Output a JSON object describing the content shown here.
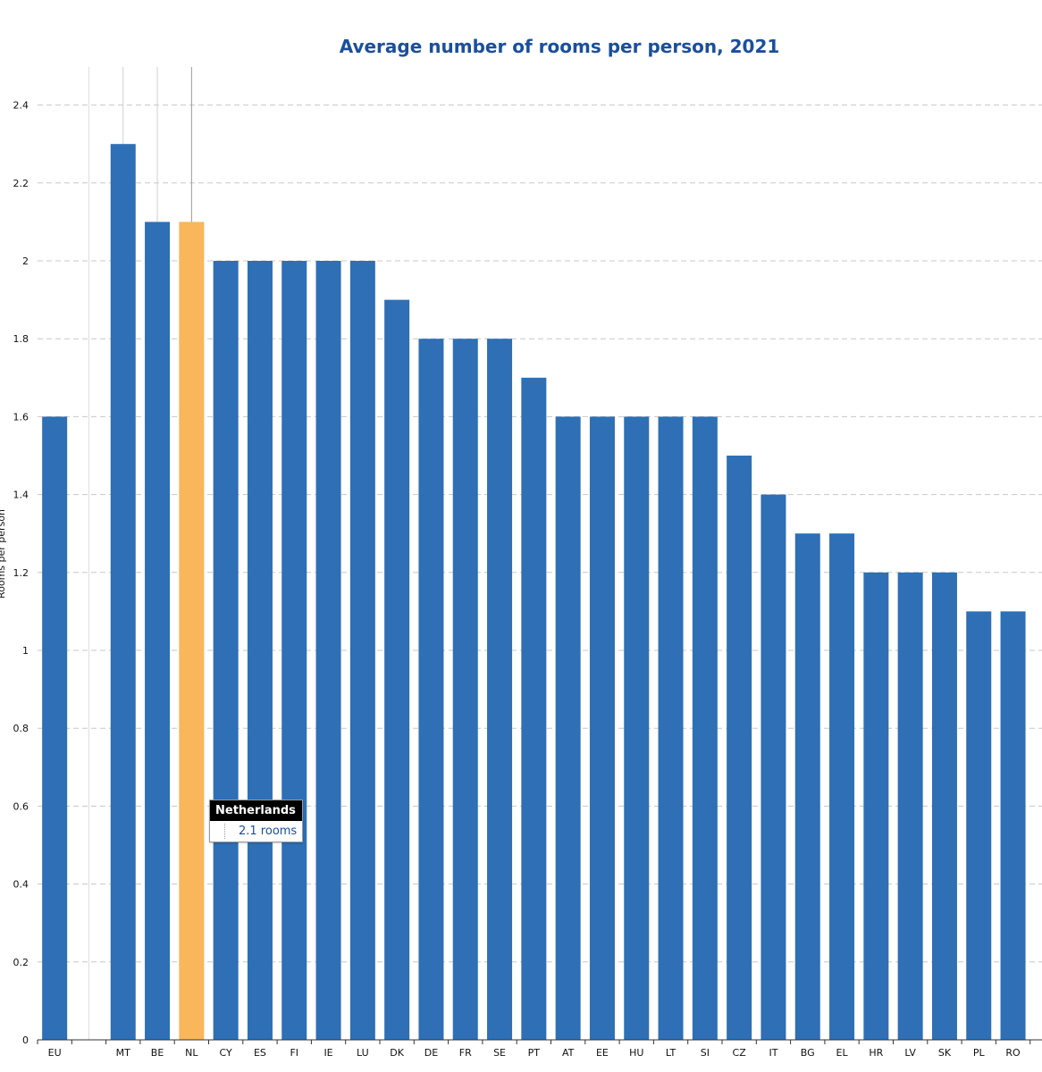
{
  "chart_data": {
    "type": "bar",
    "title": "Average number of rooms per person, 2021",
    "ylabel": "Rooms per person",
    "xlabel": "",
    "ylim": [
      0,
      2.5
    ],
    "yticks": [
      0,
      0.2,
      0.4,
      0.6,
      0.8,
      1,
      1.2,
      1.4,
      1.6,
      1.8,
      2,
      2.2,
      2.4
    ],
    "grid": true,
    "categories": [
      "EU",
      "",
      "MT",
      "BE",
      "NL",
      "CY",
      "ES",
      "FI",
      "IE",
      "LU",
      "DK",
      "DE",
      "FR",
      "SE",
      "PT",
      "AT",
      "EE",
      "HU",
      "LT",
      "SI",
      "CZ",
      "IT",
      "BG",
      "EL",
      "HR",
      "LV",
      "SK",
      "PL",
      "RO"
    ],
    "values": [
      1.6,
      null,
      2.3,
      2.1,
      2.1,
      2.0,
      2.0,
      2.0,
      2.0,
      2.0,
      1.9,
      1.8,
      1.8,
      1.8,
      1.7,
      1.6,
      1.6,
      1.6,
      1.6,
      1.6,
      1.5,
      1.4,
      1.3,
      1.3,
      1.2,
      1.2,
      1.2,
      1.1,
      1.1
    ],
    "highlight": "NL",
    "colors": {
      "bar": "#2e6fb5",
      "highlight": "#f9b65a",
      "grid": "#c8c8c8",
      "title": "#1a4f9c"
    },
    "tooltip": {
      "country": "Netherlands",
      "value_text": "2.1 rooms"
    }
  }
}
